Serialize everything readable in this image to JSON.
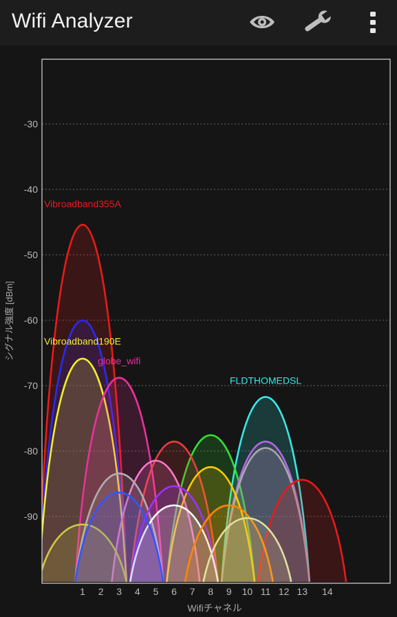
{
  "app": {
    "title": "Wifi Analyzer"
  },
  "toolbar": {
    "actions": [
      {
        "name": "view-toggle",
        "icon": "eye-icon"
      },
      {
        "name": "settings",
        "icon": "wrench-icon"
      },
      {
        "name": "more-options",
        "icon": "more-vertical-icon"
      }
    ]
  },
  "chart_data": {
    "type": "area",
    "xlabel": "Wifiチャネル",
    "ylabel": "シグナル強度 [dBm]",
    "xlim": [
      -1,
      16
    ],
    "ylim": [
      -100,
      -20
    ],
    "x_ticks": [
      1,
      2,
      3,
      4,
      5,
      6,
      7,
      8,
      9,
      10,
      11,
      12,
      13,
      14
    ],
    "y_ticks": [
      -30,
      -40,
      -50,
      -60,
      -70,
      -80,
      -90
    ],
    "grid": "horizontal dotted",
    "series": [
      {
        "name": "Vibroadband355A",
        "channel": 1,
        "level": -44,
        "color": "#e81b1b"
      },
      {
        "name": "",
        "channel": 1,
        "level": -59,
        "color": "#2a2af0"
      },
      {
        "name": "Vibroadband190E",
        "channel": 1,
        "level": -65,
        "color": "#f2f02a"
      },
      {
        "name": "globe_wifi",
        "channel": 3,
        "level": -68,
        "color": "#e8329a"
      },
      {
        "name": "FLDTHOMEDSL",
        "channel": 11,
        "level": -71,
        "color": "#3ae6e6"
      },
      {
        "name": "",
        "channel": 8,
        "level": -77,
        "color": "#33e033"
      },
      {
        "name": "",
        "channel": 6,
        "level": -78,
        "color": "#e83d3d"
      },
      {
        "name": "",
        "channel": 11,
        "level": -78,
        "color": "#b06ae0"
      },
      {
        "name": "",
        "channel": 11,
        "level": -79,
        "color": "#aaaaaa"
      },
      {
        "name": "",
        "channel": 5,
        "level": -81,
        "color": "#ff77cc"
      },
      {
        "name": "",
        "channel": 8,
        "level": -82,
        "color": "#ffcc00"
      },
      {
        "name": "",
        "channel": 3,
        "level": -83,
        "color": "#b0b0b0"
      },
      {
        "name": "",
        "channel": 13,
        "level": -84,
        "color": "#e81b1b"
      },
      {
        "name": "",
        "channel": 6,
        "level": -85,
        "color": "#9933ff"
      },
      {
        "name": "",
        "channel": 6,
        "level": -88,
        "color": "#ffffff"
      },
      {
        "name": "",
        "channel": 9,
        "level": -88,
        "color": "#ff8800"
      },
      {
        "name": "",
        "channel": 1,
        "level": -91,
        "color": "#cccc44"
      },
      {
        "name": "",
        "channel": 3,
        "level": -86,
        "color": "#3355ff"
      },
      {
        "name": "",
        "channel": 10,
        "level": -90,
        "color": "#e0e0a0"
      }
    ]
  }
}
